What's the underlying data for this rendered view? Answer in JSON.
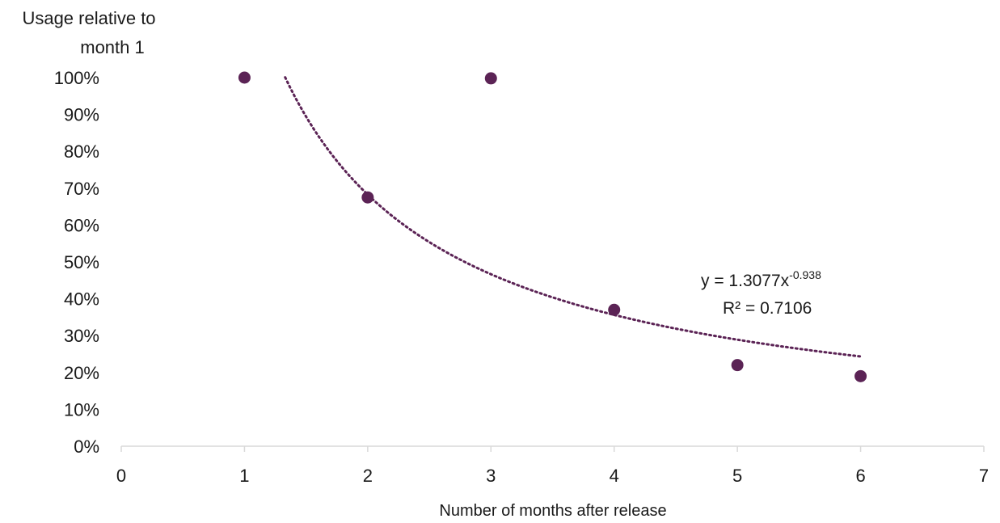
{
  "chart_data": {
    "type": "scatter",
    "title": "",
    "ylabel_lines": [
      "Usage relative to",
      "month 1"
    ],
    "xlabel": "Number of months after release",
    "xlim": [
      0,
      7
    ],
    "ylim": [
      0,
      1
    ],
    "x_ticks": [
      "0",
      "1",
      "2",
      "3",
      "4",
      "5",
      "6",
      "7"
    ],
    "y_ticks": [
      "0%",
      "10%",
      "20%",
      "30%",
      "40%",
      "50%",
      "60%",
      "70%",
      "80%",
      "90%",
      "100%"
    ],
    "grid": false,
    "legend": "none",
    "series": [
      {
        "x": [
          1,
          2,
          3,
          4,
          5,
          6
        ],
        "y": [
          1.0,
          0.675,
          0.998,
          0.37,
          0.22,
          0.19
        ],
        "color": "#5b2355"
      }
    ],
    "trendline": {
      "type": "power",
      "a": 1.3077,
      "b": -0.938,
      "x_range": [
        1.33,
        6.0
      ],
      "style": "dotted",
      "color": "#5b2355"
    },
    "annotation": {
      "equation_base": "y = 1.3077x",
      "equation_exponent": "-0.938",
      "r_squared": "R² = 0.7106"
    }
  }
}
